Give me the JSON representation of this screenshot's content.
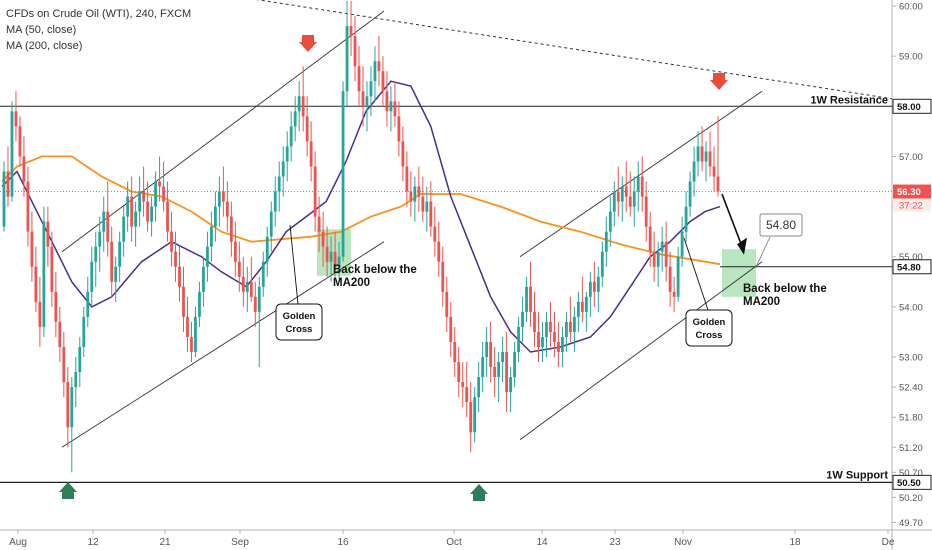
{
  "legend": {
    "symbol": "CFDs on Crude Oil (WTI), 240, FXCM",
    "ma50": "MA (50, close)",
    "ma200": "MA (200, close)"
  },
  "colors": {
    "up": "#26a69a",
    "down": "#ef5350",
    "ma50": "#4a2d8a",
    "ma200": "#f7931e",
    "priceline": "#ef5350",
    "zone": "#7fd18b",
    "arrow_down": "#e74c3c",
    "arrow_up": "#2e7d5b"
  },
  "chart_data": {
    "type": "candlestick",
    "ylim": [
      49.55,
      60.12
    ],
    "y_ticks": [
      "60.00",
      "59.00",
      "58.00",
      "57.00",
      "56.00",
      "55.00",
      "54.00",
      "53.00",
      "52.40",
      "51.80",
      "51.20",
      "50.70",
      "50.20",
      "49.70"
    ],
    "x_ticks": [
      "Aug",
      "12",
      "21",
      "Sep",
      "16",
      "Oct",
      "14",
      "23",
      "Nov",
      "18",
      "De"
    ],
    "current_price": "56.30",
    "countdown": "37:22",
    "level_label": "54.80",
    "levels": [
      {
        "price": 58.0,
        "label": "1W Resistance",
        "tag": "58.00"
      },
      {
        "price": 50.5,
        "label": "1W Support",
        "tag": "50.50"
      },
      {
        "price": 54.8,
        "label": "",
        "tag": "54.80"
      }
    ],
    "annotations": {
      "golden_cross_1": "Golden Cross",
      "golden_cross_2": "Golden Cross",
      "below_ma200_1": "Back below the MA200",
      "below_ma200_2": "Back below the MA200"
    },
    "ma50": [
      [
        0,
        56.4
      ],
      [
        15,
        56.7
      ],
      [
        30,
        56.1
      ],
      [
        50,
        55.3
      ],
      [
        70,
        54.5
      ],
      [
        90,
        54.0
      ],
      [
        110,
        54.2
      ],
      [
        140,
        54.9
      ],
      [
        170,
        55.3
      ],
      [
        200,
        55.0
      ],
      [
        220,
        54.7
      ],
      [
        245,
        54.4
      ],
      [
        265,
        54.9
      ],
      [
        285,
        55.5
      ],
      [
        305,
        55.8
      ],
      [
        325,
        56.1
      ],
      [
        345,
        56.9
      ],
      [
        365,
        57.9
      ],
      [
        390,
        58.5
      ],
      [
        410,
        58.4
      ],
      [
        430,
        57.6
      ],
      [
        450,
        56.2
      ],
      [
        470,
        55.2
      ],
      [
        490,
        54.2
      ],
      [
        510,
        53.5
      ],
      [
        530,
        53.1
      ],
      [
        560,
        53.2
      ],
      [
        590,
        53.4
      ],
      [
        610,
        53.8
      ],
      [
        630,
        54.4
      ],
      [
        650,
        55.0
      ],
      [
        670,
        55.3
      ],
      [
        690,
        55.7
      ],
      [
        705,
        55.9
      ],
      [
        720,
        56.0
      ]
    ],
    "ma200": [
      [
        0,
        56.5
      ],
      [
        15,
        56.8
      ],
      [
        40,
        57.0
      ],
      [
        70,
        57.0
      ],
      [
        100,
        56.6
      ],
      [
        130,
        56.3
      ],
      [
        160,
        56.2
      ],
      [
        190,
        55.9
      ],
      [
        220,
        55.5
      ],
      [
        250,
        55.3
      ],
      [
        280,
        55.35
      ],
      [
        310,
        55.4
      ],
      [
        340,
        55.5
      ],
      [
        370,
        55.8
      ],
      [
        400,
        56.0
      ],
      [
        420,
        56.25
      ],
      [
        460,
        56.25
      ],
      [
        500,
        56.0
      ],
      [
        540,
        55.7
      ],
      [
        580,
        55.5
      ],
      [
        620,
        55.25
      ],
      [
        660,
        55.05
      ],
      [
        690,
        54.95
      ],
      [
        720,
        54.85
      ]
    ],
    "candles": [
      [
        2,
        55.6,
        56.9,
        55.5,
        56.7
      ],
      [
        6,
        56.7,
        57.2,
        56.0,
        56.2
      ],
      [
        10,
        56.2,
        58.1,
        56.1,
        57.9
      ],
      [
        14,
        57.9,
        58.3,
        57.3,
        57.6
      ],
      [
        18,
        57.6,
        57.8,
        56.8,
        57.0
      ],
      [
        22,
        57.0,
        57.4,
        56.2,
        56.5
      ],
      [
        26,
        56.5,
        56.8,
        55.2,
        55.5
      ],
      [
        30,
        55.5,
        55.9,
        54.5,
        54.8
      ],
      [
        34,
        54.8,
        55.2,
        53.9,
        54.1
      ],
      [
        38,
        54.1,
        54.6,
        53.2,
        53.6
      ],
      [
        42,
        53.6,
        56.0,
        53.4,
        55.7
      ],
      [
        46,
        55.7,
        56.0,
        54.8,
        55.2
      ],
      [
        50,
        55.2,
        55.5,
        54.0,
        54.3
      ],
      [
        54,
        54.3,
        54.7,
        53.4,
        53.7
      ],
      [
        58,
        53.7,
        54.0,
        52.9,
        53.2
      ],
      [
        62,
        53.2,
        53.5,
        52.2,
        52.5
      ],
      [
        66,
        52.5,
        52.8,
        51.2,
        51.6
      ],
      [
        70,
        51.6,
        52.6,
        50.7,
        52.4
      ],
      [
        74,
        52.4,
        53.0,
        52.0,
        52.7
      ],
      [
        78,
        52.7,
        53.4,
        52.4,
        53.2
      ],
      [
        82,
        53.2,
        54.0,
        53.0,
        53.8
      ],
      [
        86,
        53.8,
        54.6,
        53.6,
        54.3
      ],
      [
        90,
        54.3,
        55.2,
        54.0,
        54.9
      ],
      [
        94,
        54.9,
        55.5,
        54.4,
        55.2
      ],
      [
        98,
        55.2,
        55.8,
        54.7,
        55.5
      ],
      [
        102,
        55.5,
        56.2,
        55.1,
        55.9
      ],
      [
        106,
        55.9,
        56.5,
        55.0,
        55.3
      ],
      [
        110,
        55.3,
        55.6,
        54.2,
        54.5
      ],
      [
        114,
        54.5,
        55.0,
        54.1,
        54.8
      ],
      [
        118,
        54.8,
        55.5,
        54.5,
        55.3
      ],
      [
        122,
        55.3,
        56.0,
        55.0,
        55.8
      ],
      [
        126,
        55.8,
        56.5,
        55.5,
        56.2
      ],
      [
        130,
        56.2,
        56.6,
        55.3,
        55.6
      ],
      [
        134,
        55.6,
        56.1,
        55.2,
        55.9
      ],
      [
        138,
        55.9,
        56.6,
        55.6,
        56.3
      ],
      [
        142,
        56.3,
        56.8,
        55.8,
        56.1
      ],
      [
        146,
        56.1,
        56.5,
        55.5,
        55.7
      ],
      [
        150,
        55.7,
        56.2,
        55.4,
        56.0
      ],
      [
        154,
        56.0,
        56.7,
        55.7,
        56.5
      ],
      [
        158,
        56.5,
        57.0,
        56.1,
        56.4
      ],
      [
        162,
        56.4,
        56.9,
        55.9,
        56.1
      ],
      [
        166,
        56.1,
        56.5,
        55.3,
        55.5
      ],
      [
        170,
        55.5,
        55.9,
        54.8,
        55.1
      ],
      [
        174,
        55.1,
        55.5,
        54.5,
        54.8
      ],
      [
        178,
        54.8,
        55.2,
        54.1,
        54.4
      ],
      [
        182,
        54.4,
        54.8,
        53.5,
        53.8
      ],
      [
        186,
        53.8,
        54.2,
        53.1,
        53.4
      ],
      [
        190,
        53.4,
        53.7,
        52.9,
        53.1
      ],
      [
        194,
        53.1,
        54.0,
        53.0,
        53.8
      ],
      [
        198,
        53.8,
        54.5,
        53.6,
        54.3
      ],
      [
        202,
        54.3,
        55.0,
        54.0,
        54.8
      ],
      [
        206,
        54.8,
        55.5,
        54.5,
        55.2
      ],
      [
        210,
        55.2,
        55.9,
        54.9,
        55.6
      ],
      [
        214,
        55.6,
        56.3,
        55.3,
        56.0
      ],
      [
        218,
        56.0,
        56.6,
        55.6,
        56.3
      ],
      [
        222,
        56.3,
        56.8,
        55.8,
        56.1
      ],
      [
        226,
        56.1,
        56.5,
        55.5,
        55.8
      ],
      [
        230,
        55.8,
        56.1,
        55.0,
        55.3
      ],
      [
        234,
        55.3,
        55.7,
        54.6,
        54.9
      ],
      [
        238,
        54.9,
        55.3,
        54.3,
        54.6
      ],
      [
        242,
        54.6,
        55.0,
        54.0,
        54.3
      ],
      [
        246,
        54.3,
        54.8,
        53.9,
        54.5
      ],
      [
        250,
        54.5,
        55.0,
        54.1,
        54.2
      ],
      [
        254,
        54.2,
        54.5,
        53.6,
        53.9
      ],
      [
        258,
        53.9,
        54.6,
        52.8,
        54.4
      ],
      [
        262,
        54.4,
        55.1,
        54.2,
        54.9
      ],
      [
        266,
        54.9,
        55.6,
        54.6,
        55.4
      ],
      [
        270,
        55.4,
        56.1,
        55.1,
        55.9
      ],
      [
        274,
        55.9,
        56.6,
        55.6,
        56.3
      ],
      [
        278,
        56.3,
        56.9,
        55.9,
        56.6
      ],
      [
        282,
        56.6,
        57.2,
        56.2,
        56.9
      ],
      [
        286,
        56.9,
        57.5,
        56.5,
        57.2
      ],
      [
        290,
        57.2,
        57.9,
        56.9,
        57.6
      ],
      [
        294,
        57.6,
        58.2,
        57.3,
        57.9
      ],
      [
        298,
        57.9,
        58.5,
        57.5,
        58.2
      ],
      [
        302,
        58.2,
        58.8,
        57.5,
        57.8
      ],
      [
        306,
        57.8,
        58.2,
        57.0,
        57.3
      ],
      [
        310,
        57.3,
        57.7,
        56.5,
        56.8
      ],
      [
        314,
        56.8,
        57.1,
        55.5,
        55.8
      ],
      [
        318,
        55.8,
        56.2,
        55.1,
        55.5
      ],
      [
        322,
        55.5,
        55.9,
        54.8,
        55.2
      ],
      [
        326,
        55.2,
        55.6,
        54.6,
        54.9
      ],
      [
        330,
        54.9,
        55.4,
        54.5,
        55.1
      ],
      [
        334,
        55.1,
        55.5,
        54.6,
        54.8
      ],
      [
        338,
        54.8,
        55.3,
        54.5,
        55.0
      ],
      [
        342,
        55.0,
        58.5,
        54.9,
        58.3
      ],
      [
        346,
        58.3,
        60.1,
        58.0,
        59.6
      ],
      [
        350,
        59.6,
        60.1,
        59.0,
        59.4
      ],
      [
        354,
        59.4,
        59.8,
        58.5,
        58.8
      ],
      [
        358,
        58.8,
        59.2,
        58.0,
        58.3
      ],
      [
        362,
        58.3,
        58.8,
        57.6,
        58.0
      ],
      [
        366,
        58.0,
        58.5,
        57.5,
        58.2
      ],
      [
        370,
        58.2,
        58.8,
        57.8,
        58.5
      ],
      [
        374,
        58.5,
        59.2,
        58.1,
        58.9
      ],
      [
        378,
        58.9,
        59.4,
        58.4,
        58.7
      ],
      [
        382,
        58.7,
        59.0,
        58.0,
        58.3
      ],
      [
        386,
        58.3,
        58.7,
        57.6,
        57.9
      ],
      [
        390,
        57.9,
        58.4,
        57.5,
        58.1
      ],
      [
        394,
        58.1,
        58.5,
        57.6,
        57.8
      ],
      [
        398,
        57.8,
        58.1,
        57.0,
        57.3
      ],
      [
        402,
        57.3,
        57.6,
        56.5,
        56.8
      ],
      [
        406,
        56.8,
        57.1,
        56.0,
        56.3
      ],
      [
        410,
        56.3,
        56.7,
        55.8,
        56.1
      ],
      [
        414,
        56.1,
        56.6,
        55.7,
        56.4
      ],
      [
        418,
        56.4,
        56.8,
        55.9,
        56.2
      ],
      [
        422,
        56.2,
        56.6,
        55.7,
        55.9
      ],
      [
        426,
        55.9,
        56.4,
        55.5,
        56.1
      ],
      [
        430,
        56.1,
        56.5,
        55.4,
        55.6
      ],
      [
        434,
        55.6,
        56.0,
        55.0,
        55.3
      ],
      [
        438,
        55.3,
        55.7,
        54.6,
        54.9
      ],
      [
        442,
        54.9,
        55.2,
        54.0,
        54.3
      ],
      [
        446,
        54.3,
        54.6,
        53.5,
        53.8
      ],
      [
        450,
        53.8,
        54.1,
        53.0,
        53.3
      ],
      [
        454,
        53.3,
        53.6,
        52.6,
        52.9
      ],
      [
        458,
        52.9,
        53.2,
        52.2,
        52.5
      ],
      [
        462,
        52.5,
        52.9,
        52.0,
        52.4
      ],
      [
        466,
        52.4,
        52.9,
        51.8,
        52.1
      ],
      [
        470,
        52.1,
        52.5,
        51.1,
        51.5
      ],
      [
        474,
        51.5,
        52.4,
        51.3,
        52.2
      ],
      [
        478,
        52.2,
        52.9,
        51.9,
        52.6
      ],
      [
        482,
        52.6,
        53.3,
        52.3,
        53.0
      ],
      [
        486,
        53.0,
        53.6,
        52.6,
        53.3
      ],
      [
        490,
        53.3,
        53.7,
        52.5,
        52.8
      ],
      [
        494,
        52.8,
        53.2,
        52.2,
        52.6
      ],
      [
        498,
        52.6,
        53.1,
        52.1,
        52.9
      ],
      [
        502,
        52.9,
        53.4,
        52.5,
        53.1
      ],
      [
        506,
        53.1,
        53.5,
        51.9,
        52.3
      ],
      [
        510,
        52.3,
        52.8,
        51.9,
        52.6
      ],
      [
        514,
        52.6,
        53.3,
        52.4,
        53.1
      ],
      [
        518,
        53.1,
        53.8,
        52.9,
        53.6
      ],
      [
        522,
        53.6,
        54.2,
        53.3,
        53.9
      ],
      [
        526,
        53.9,
        54.6,
        53.7,
        54.4
      ],
      [
        530,
        54.4,
        54.9,
        53.6,
        53.9
      ],
      [
        534,
        53.9,
        54.3,
        53.2,
        53.5
      ],
      [
        538,
        53.5,
        53.9,
        52.9,
        53.2
      ],
      [
        542,
        53.2,
        53.7,
        52.9,
        53.4
      ],
      [
        546,
        53.4,
        53.9,
        53.0,
        53.7
      ],
      [
        550,
        53.7,
        54.1,
        53.2,
        53.5
      ],
      [
        554,
        53.5,
        53.9,
        53.0,
        53.3
      ],
      [
        558,
        53.3,
        53.7,
        52.8,
        53.1
      ],
      [
        562,
        53.1,
        53.6,
        52.8,
        53.4
      ],
      [
        566,
        53.4,
        53.9,
        53.1,
        53.7
      ],
      [
        570,
        53.7,
        54.2,
        53.3,
        53.5
      ],
      [
        574,
        53.5,
        54.0,
        53.1,
        53.8
      ],
      [
        578,
        53.8,
        54.3,
        53.5,
        54.1
      ],
      [
        582,
        54.1,
        54.6,
        53.7,
        53.9
      ],
      [
        586,
        53.9,
        54.3,
        53.5,
        54.2
      ],
      [
        590,
        54.2,
        54.7,
        53.8,
        54.5
      ],
      [
        594,
        54.5,
        54.9,
        54.0,
        54.3
      ],
      [
        598,
        54.3,
        54.8,
        53.9,
        54.6
      ],
      [
        602,
        54.6,
        55.3,
        54.4,
        55.1
      ],
      [
        606,
        55.1,
        55.8,
        54.8,
        55.5
      ],
      [
        610,
        55.5,
        56.2,
        55.2,
        55.9
      ],
      [
        614,
        55.9,
        56.5,
        55.6,
        56.3
      ],
      [
        618,
        56.3,
        56.8,
        55.8,
        56.1
      ],
      [
        622,
        56.1,
        56.6,
        55.7,
        56.4
      ],
      [
        626,
        56.4,
        56.9,
        55.9,
        56.2
      ],
      [
        630,
        56.2,
        56.7,
        55.8,
        56.0
      ],
      [
        634,
        56.0,
        56.6,
        55.6,
        56.3
      ],
      [
        638,
        56.3,
        56.9,
        55.9,
        56.6
      ],
      [
        642,
        56.6,
        57.0,
        55.9,
        56.2
      ],
      [
        646,
        56.2,
        56.5,
        55.3,
        55.6
      ],
      [
        650,
        55.6,
        55.9,
        54.8,
        55.1
      ],
      [
        654,
        55.1,
        55.5,
        54.5,
        54.8
      ],
      [
        658,
        54.8,
        55.3,
        54.4,
        55.1
      ],
      [
        662,
        55.1,
        55.6,
        54.7,
        55.3
      ],
      [
        666,
        55.3,
        55.7,
        54.5,
        54.8
      ],
      [
        670,
        54.8,
        55.1,
        54.0,
        54.3
      ],
      [
        674,
        54.3,
        54.6,
        53.9,
        54.2
      ],
      [
        678,
        54.2,
        55.2,
        54.1,
        55.0
      ],
      [
        682,
        55.0,
        55.8,
        54.8,
        55.5
      ],
      [
        686,
        55.5,
        56.3,
        55.3,
        56.0
      ],
      [
        690,
        56.0,
        56.7,
        55.8,
        56.5
      ],
      [
        694,
        56.5,
        57.2,
        56.2,
        56.9
      ],
      [
        698,
        56.9,
        57.5,
        56.6,
        57.2
      ],
      [
        702,
        57.2,
        57.6,
        56.7,
        56.9
      ],
      [
        706,
        56.9,
        57.3,
        56.5,
        57.1
      ],
      [
        710,
        57.1,
        57.5,
        56.6,
        56.8
      ],
      [
        714,
        56.8,
        57.2,
        56.3,
        56.6
      ],
      [
        718,
        56.6,
        57.8,
        56.2,
        56.3
      ]
    ]
  }
}
